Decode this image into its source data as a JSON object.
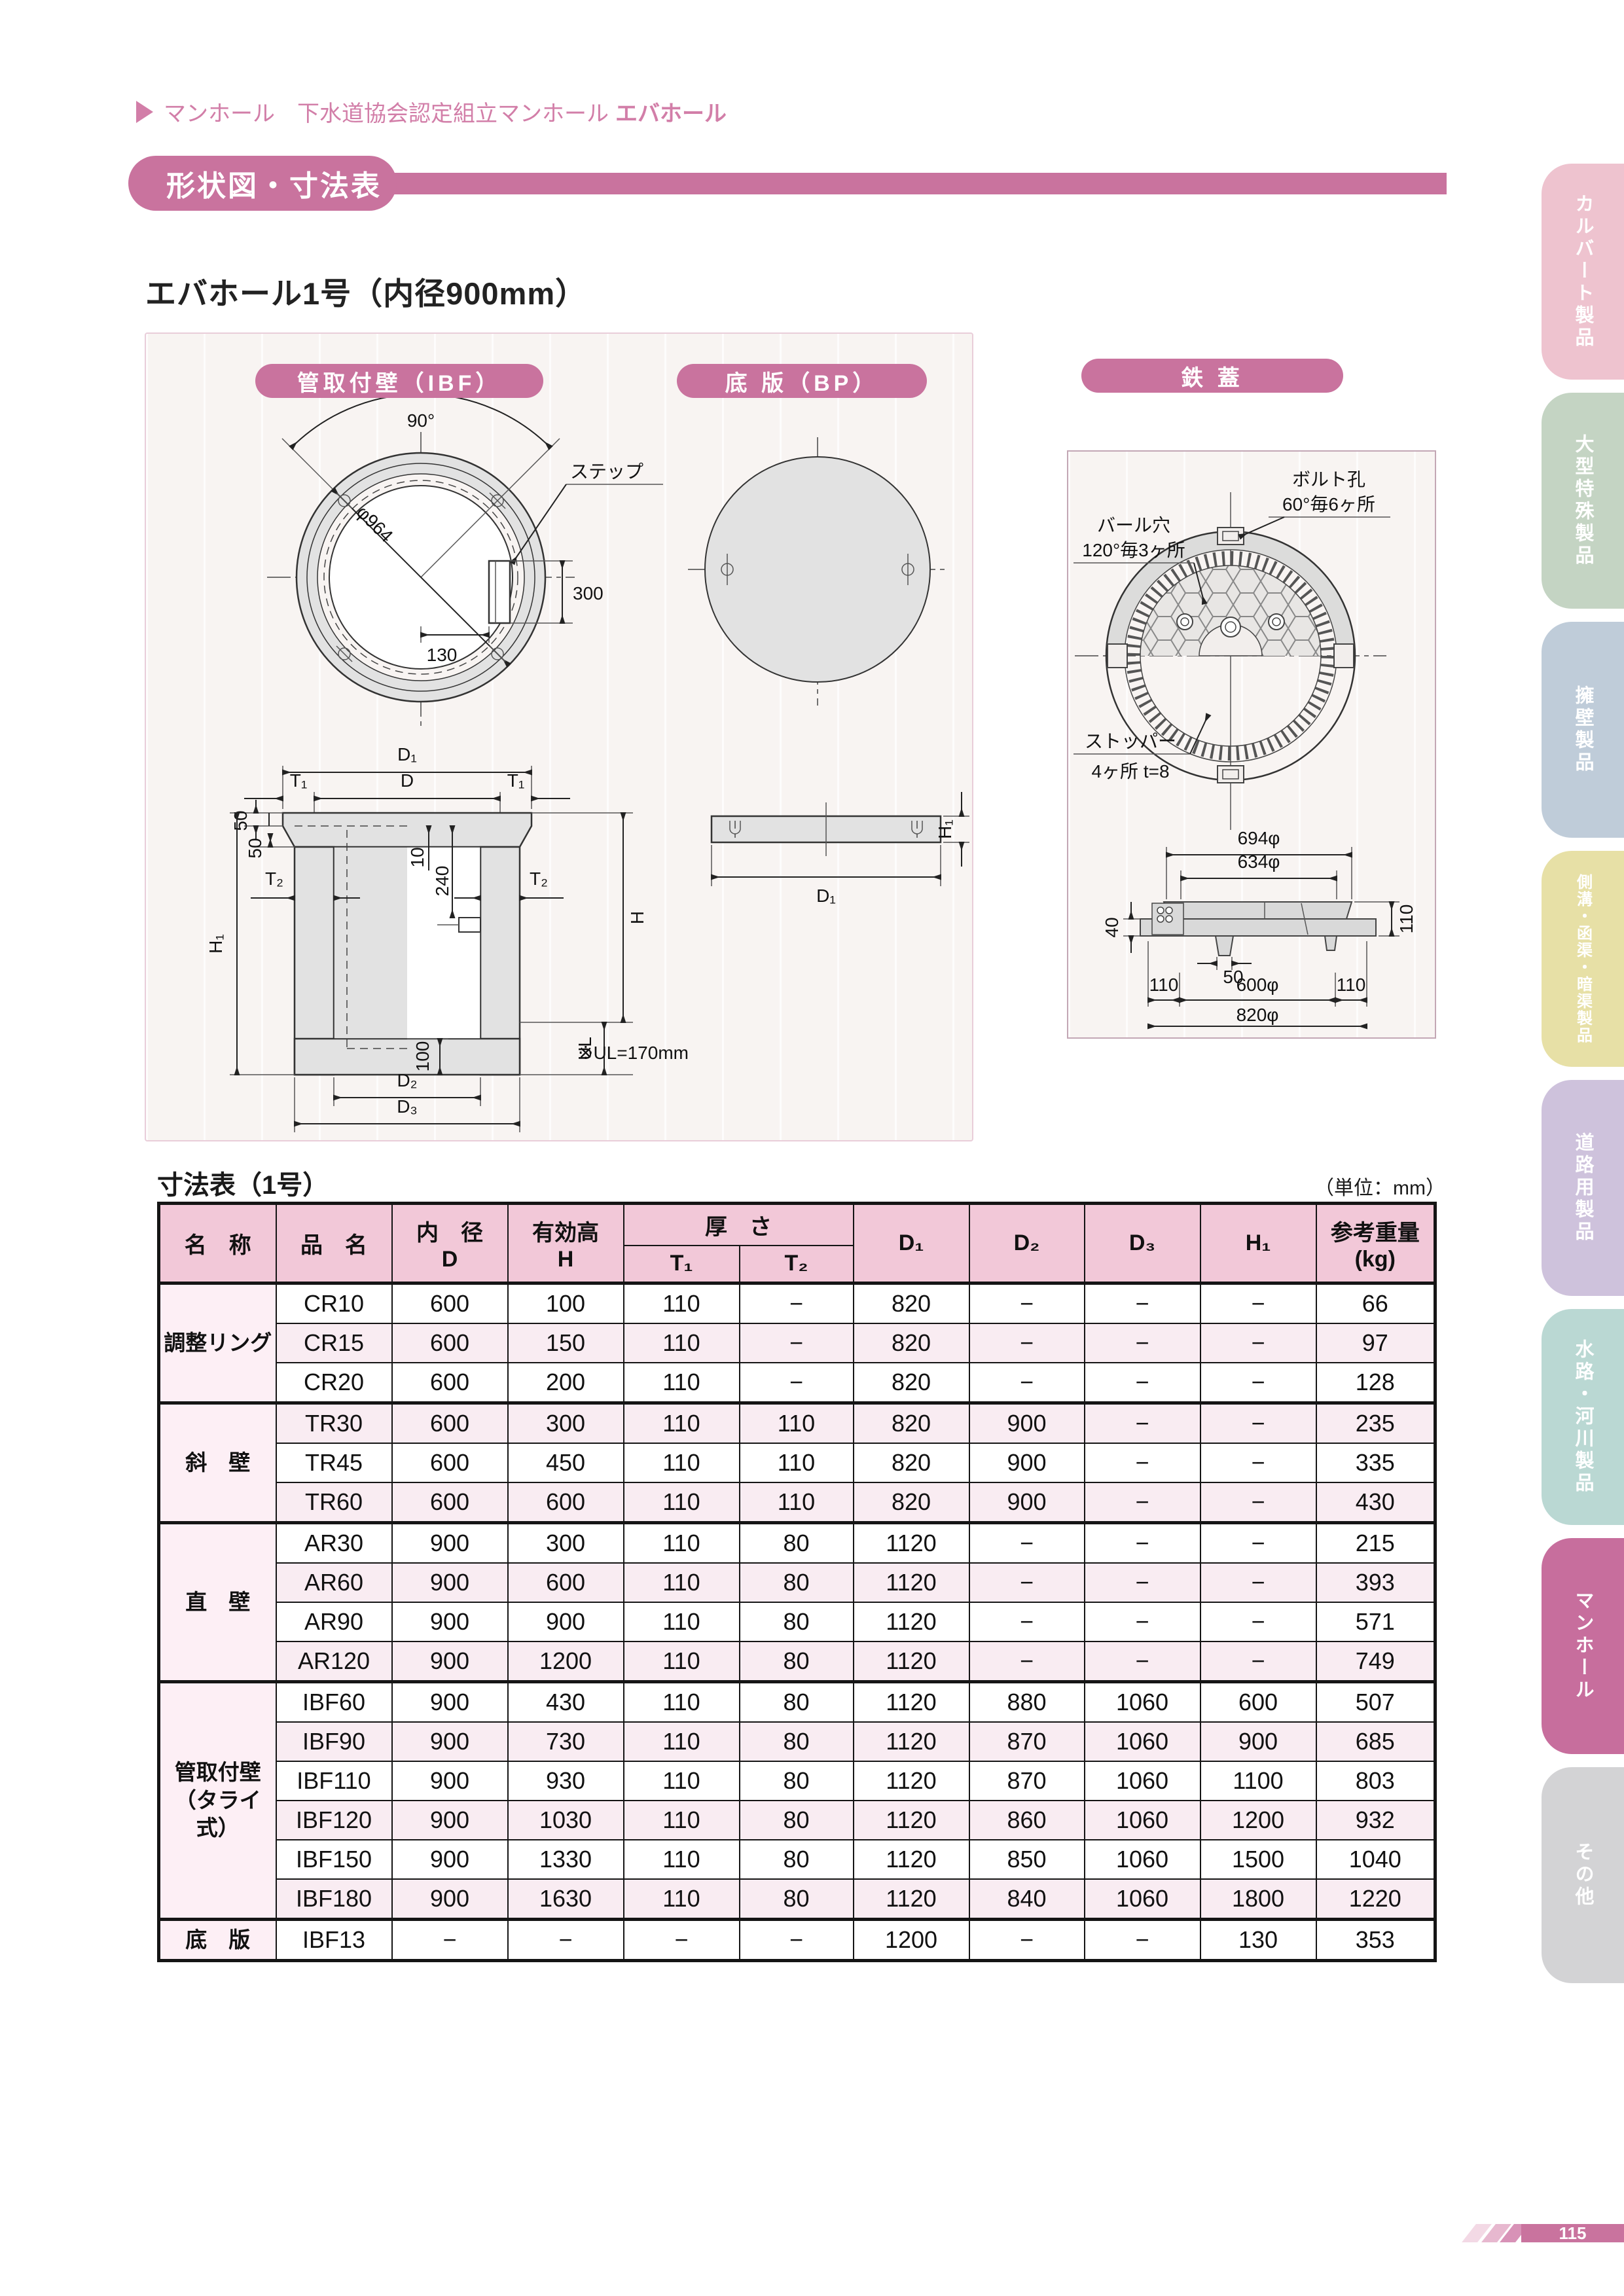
{
  "colors": {
    "accent_pink": "#c9739e",
    "breadcrumb_pink": "#d27ea8",
    "table_header_bg": "#f2c8d8",
    "group_cell_bg": "#fdeff5",
    "row_alt_bg": "#f9ecf2",
    "panel_bg": "#f8f4f2",
    "drawing_gray": "#e2e2e2",
    "active_tab_pink": "#c76e9d"
  },
  "header": {
    "breadcrumb": {
      "category": "マンホール",
      "series": "下水道協会認定組立マンホール",
      "product": "エバホール"
    },
    "section_banner": "形状図・寸法表",
    "product_title": "エバホール1号（内径900mm）"
  },
  "drawings": {
    "ibf": {
      "banner": "管取付壁（IBF）",
      "angle_label": "90°",
      "diameter_label": "φ964",
      "step_label": "ステップ",
      "dim_300": "300",
      "dim_130": "130"
    },
    "bp": {
      "banner": "底 版（BP）",
      "d1": "D₁",
      "h1": "H₁"
    },
    "cross_section": {
      "d1": "D₁",
      "d": "D",
      "t1_left": "T₁",
      "t1_right": "T₁",
      "dim50_a": "50",
      "dim50_b": "50",
      "t2_left": "T₂",
      "t2_right": "T₂",
      "h1": "H₁",
      "h": "H",
      "dim10": "10",
      "dim240": "240",
      "ul": "UL",
      "dim100": "100",
      "d2": "D₂",
      "d3": "D₃",
      "note": "※UL=170mm"
    },
    "cover": {
      "banner": "鉄 蓋",
      "bolt_hole_label": "ボルト孔",
      "bolt_hole_detail": "60°毎6ヶ所",
      "bar_hole_label": "バール穴",
      "bar_hole_detail": "120°毎3ヶ所",
      "stopper_label": "ストッパー",
      "stopper_detail": "4ヶ所 t=8",
      "dim_694": "694φ",
      "dim_634": "634φ",
      "dim_40": "40",
      "dim_110_side": "110",
      "dim_50": "50",
      "dim_110_left": "110",
      "dim_600": "600φ",
      "dim_110_right": "110",
      "dim_820": "820φ"
    }
  },
  "table": {
    "title": "寸法表（1号）",
    "unit_note": "（単位：mm）",
    "headers": {
      "name": "名　称",
      "product": "品　名",
      "inner_dia": "内　径",
      "inner_dia_sub": "D",
      "eff_height": "有効高",
      "eff_height_sub": "H",
      "thickness": "厚　さ",
      "t1": "T₁",
      "t2": "T₂",
      "d1": "D₁",
      "d2": "D₂",
      "d3": "D₃",
      "h1": "H₁",
      "weight": "参考重量",
      "weight_unit": "(kg)"
    },
    "groups": [
      {
        "name": "調整リング",
        "rows": [
          [
            "CR10",
            "600",
            "100",
            "110",
            "−",
            "820",
            "−",
            "−",
            "−",
            "66"
          ],
          [
            "CR15",
            "600",
            "150",
            "110",
            "−",
            "820",
            "−",
            "−",
            "−",
            "97"
          ],
          [
            "CR20",
            "600",
            "200",
            "110",
            "−",
            "820",
            "−",
            "−",
            "−",
            "128"
          ]
        ]
      },
      {
        "name": "斜　壁",
        "rows": [
          [
            "TR30",
            "600",
            "300",
            "110",
            "110",
            "820",
            "900",
            "−",
            "−",
            "235"
          ],
          [
            "TR45",
            "600",
            "450",
            "110",
            "110",
            "820",
            "900",
            "−",
            "−",
            "335"
          ],
          [
            "TR60",
            "600",
            "600",
            "110",
            "110",
            "820",
            "900",
            "−",
            "−",
            "430"
          ]
        ]
      },
      {
        "name": "直　壁",
        "rows": [
          [
            "AR30",
            "900",
            "300",
            "110",
            "80",
            "1120",
            "−",
            "−",
            "−",
            "215"
          ],
          [
            "AR60",
            "900",
            "600",
            "110",
            "80",
            "1120",
            "−",
            "−",
            "−",
            "393"
          ],
          [
            "AR90",
            "900",
            "900",
            "110",
            "80",
            "1120",
            "−",
            "−",
            "−",
            "571"
          ],
          [
            "AR120",
            "900",
            "1200",
            "110",
            "80",
            "1120",
            "−",
            "−",
            "−",
            "749"
          ]
        ]
      },
      {
        "name": "管取付壁\n（タライ式）",
        "rows": [
          [
            "IBF60",
            "900",
            "430",
            "110",
            "80",
            "1120",
            "880",
            "1060",
            "600",
            "507"
          ],
          [
            "IBF90",
            "900",
            "730",
            "110",
            "80",
            "1120",
            "870",
            "1060",
            "900",
            "685"
          ],
          [
            "IBF110",
            "900",
            "930",
            "110",
            "80",
            "1120",
            "870",
            "1060",
            "1100",
            "803"
          ],
          [
            "IBF120",
            "900",
            "1030",
            "110",
            "80",
            "1120",
            "860",
            "1060",
            "1200",
            "932"
          ],
          [
            "IBF150",
            "900",
            "1330",
            "110",
            "80",
            "1120",
            "850",
            "1060",
            "1500",
            "1040"
          ],
          [
            "IBF180",
            "900",
            "1630",
            "110",
            "80",
            "1120",
            "840",
            "1060",
            "1800",
            "1220"
          ]
        ]
      },
      {
        "name": "底　版",
        "rows": [
          [
            "IBF13",
            "−",
            "−",
            "−",
            "−",
            "1200",
            "−",
            "−",
            "130",
            "353"
          ]
        ]
      }
    ]
  },
  "sidebar": {
    "tabs": [
      {
        "label": "カルバート製品",
        "color": "#eec3cf",
        "active": false
      },
      {
        "label": "大型特殊製品",
        "color": "#c4d4c3",
        "active": false
      },
      {
        "label": "擁壁製品",
        "color": "#bfccd9",
        "active": false
      },
      {
        "label": "側溝・函渠・暗渠製品",
        "color": "#e7e0a6",
        "active": false
      },
      {
        "label": "道路用製品",
        "color": "#cec2dc",
        "active": false
      },
      {
        "label": "水路・河川製品",
        "color": "#bad8d3",
        "active": false
      },
      {
        "label": "マンホール",
        "color": "#c76e9d",
        "active": true
      },
      {
        "label": "その他",
        "color": "#d3d3d5",
        "active": false
      }
    ]
  },
  "footer": {
    "page_number": "115"
  }
}
